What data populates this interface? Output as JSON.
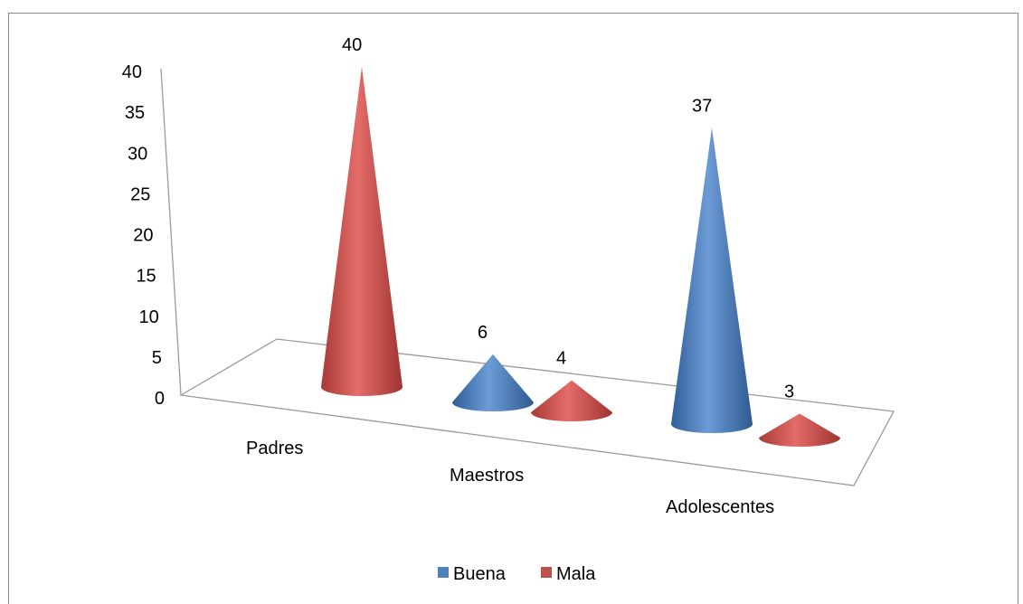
{
  "chart_data": {
    "type": "bar",
    "style": "3d-cone",
    "categories": [
      "Padres",
      "Maestros",
      "Adolescentes"
    ],
    "series": [
      {
        "name": "Buena",
        "values": [
          0,
          6,
          37
        ],
        "color": "#4f81bd"
      },
      {
        "name": "Mala",
        "values": [
          40,
          4,
          3
        ],
        "color": "#c0504d"
      }
    ],
    "data_labels": [
      {
        "category": "Padres",
        "series": "Mala",
        "text": "40"
      },
      {
        "category": "Maestros",
        "series": "Buena",
        "text": "6"
      },
      {
        "category": "Maestros",
        "series": "Mala",
        "text": "4"
      },
      {
        "category": "Adolescentes",
        "series": "Buena",
        "text": "37"
      },
      {
        "category": "Adolescentes",
        "series": "Mala",
        "text": "3"
      }
    ],
    "ylim": [
      0,
      40
    ],
    "yticks": [
      "0",
      "5",
      "10",
      "15",
      "20",
      "25",
      "30",
      "35",
      "40"
    ],
    "title": "",
    "xlabel": "",
    "ylabel": "",
    "grid": false,
    "legend": {
      "position": "bottom",
      "entries": [
        "Buena",
        "Mala"
      ]
    }
  }
}
